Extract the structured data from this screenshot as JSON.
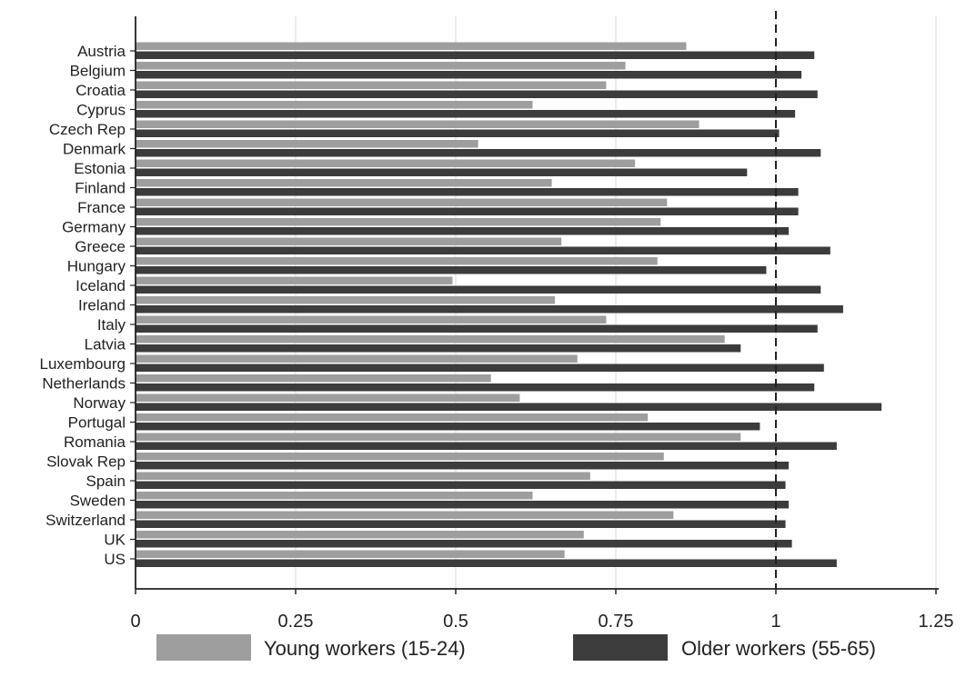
{
  "chart_data": {
    "type": "bar",
    "orientation": "horizontal",
    "categories": [
      "Austria",
      "Belgium",
      "Croatia",
      "Cyprus",
      "Czech Rep",
      "Denmark",
      "Estonia",
      "Finland",
      "France",
      "Germany",
      "Greece",
      "Hungary",
      "Iceland",
      "Ireland",
      "Italy",
      "Latvia",
      "Luxembourg",
      "Netherlands",
      "Norway",
      "Portugal",
      "Romania",
      "Slovak Rep",
      "Spain",
      "Sweden",
      "Switzerland",
      "UK",
      "US"
    ],
    "series": [
      {
        "name": "Young workers (15-24)",
        "color": "#9e9e9e",
        "values": [
          0.86,
          0.765,
          0.735,
          0.62,
          0.88,
          0.535,
          0.78,
          0.65,
          0.83,
          0.82,
          0.665,
          0.815,
          0.495,
          0.655,
          0.735,
          0.92,
          0.69,
          0.555,
          0.6,
          0.8,
          0.945,
          0.825,
          0.71,
          0.62,
          0.84,
          0.7,
          0.67
        ]
      },
      {
        "name": "Older workers (55-65)",
        "color": "#3c3c3c",
        "values": [
          1.06,
          1.04,
          1.065,
          1.03,
          1.005,
          1.07,
          0.955,
          1.035,
          1.035,
          1.02,
          1.085,
          0.985,
          1.07,
          1.105,
          1.065,
          0.945,
          1.075,
          1.06,
          1.165,
          0.975,
          1.095,
          1.02,
          1.015,
          1.02,
          1.015,
          1.025,
          1.095
        ]
      }
    ],
    "xlim": [
      0,
      1.27
    ],
    "x_ticks": [
      0,
      0.25,
      0.5,
      0.75,
      1,
      1.25
    ],
    "x_tick_labels": [
      "0",
      "0.25",
      "0.5",
      "0.75",
      "1",
      "1.25"
    ],
    "reference_line": 1,
    "grid": "vertical",
    "legend_position": "bottom"
  }
}
